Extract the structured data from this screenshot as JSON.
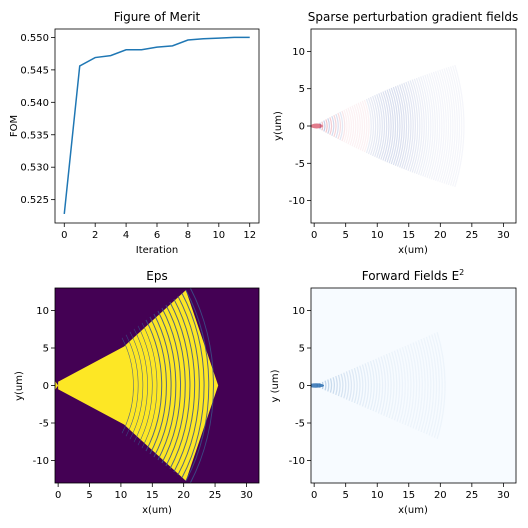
{
  "colors": {
    "line": "#1f77b4",
    "eps_background": "#440154",
    "eps_fill": "#fde725",
    "eps_ring": "#3b528b",
    "grad_positive": "#c8102e",
    "grad_negative": "#1f3f9f",
    "field": "#2166ac"
  },
  "chart_data": [
    {
      "id": "fom",
      "type": "line",
      "title": "Figure of Merit",
      "xlabel": "Iteration",
      "ylabel": "FOM",
      "xlim": [
        -0.6,
        12.6
      ],
      "ylim": [
        0.5214,
        0.5513
      ],
      "xticks": [
        0,
        2,
        4,
        6,
        8,
        10,
        12
      ],
      "yticks": [
        0.525,
        0.53,
        0.535,
        0.54,
        0.545,
        0.55
      ],
      "ytick_labels": [
        "0.525",
        "0.530",
        "0.535",
        "0.540",
        "0.545",
        "0.550"
      ],
      "series": [
        {
          "x": [
            0,
            1,
            2,
            3,
            4,
            5,
            6,
            7,
            8,
            9,
            10,
            11,
            12
          ],
          "values": [
            0.5228,
            0.5456,
            0.5469,
            0.5472,
            0.5481,
            0.5481,
            0.5485,
            0.5487,
            0.5496,
            0.5498,
            0.5499,
            0.55,
            0.55
          ]
        }
      ]
    },
    {
      "id": "gradient",
      "type": "heatmap",
      "title": "Sparse perturbation gradient fields",
      "xlabel": "x(um)",
      "ylabel": "y(um)",
      "xlim": [
        -0.5,
        32
      ],
      "ylim": [
        -13,
        13
      ],
      "xticks": [
        0,
        5,
        10,
        15,
        20,
        25,
        30
      ],
      "yticks": [
        10,
        5,
        0,
        -5,
        -10
      ],
      "colormap": "diverging red-white-blue"
    },
    {
      "id": "eps",
      "type": "heatmap",
      "title": "Eps",
      "xlabel": "x(um)",
      "ylabel": "y(um)",
      "xlim": [
        -0.5,
        32
      ],
      "ylim": [
        -13,
        13
      ],
      "xticks": [
        0,
        5,
        10,
        15,
        20,
        25,
        30
      ],
      "yticks": [
        10,
        5,
        0,
        -5,
        -10
      ],
      "colormap": "viridis"
    },
    {
      "id": "forward",
      "type": "heatmap",
      "title": "Forward Fields E",
      "title_sup": "2",
      "xlabel": "x(um)",
      "ylabel": "y (um)",
      "xlim": [
        -0.5,
        32
      ],
      "ylim": [
        -13,
        13
      ],
      "xticks": [
        0,
        5,
        10,
        15,
        20,
        25,
        30
      ],
      "yticks": [
        10,
        5,
        0,
        -5,
        -10
      ],
      "colormap": "Blues"
    }
  ]
}
